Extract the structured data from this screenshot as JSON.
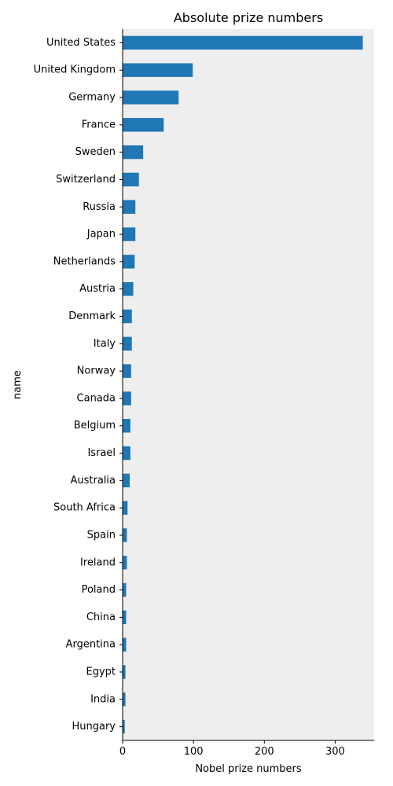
{
  "chart_data": {
    "type": "bar",
    "orientation": "horizontal",
    "title": "Absolute prize numbers",
    "xlabel": "Nobel prize numbers",
    "ylabel": "name",
    "categories": [
      "United States",
      "United Kingdom",
      "Germany",
      "France",
      "Sweden",
      "Switzerland",
      "Russia",
      "Japan",
      "Netherlands",
      "Austria",
      "Denmark",
      "Italy",
      "Norway",
      "Canada",
      "Belgium",
      "Israel",
      "Australia",
      "South Africa",
      "Spain",
      "Ireland",
      "Poland",
      "China",
      "Argentina",
      "Egypt",
      "India",
      "Hungary"
    ],
    "values": [
      339,
      99,
      79,
      58,
      29,
      23,
      18,
      18,
      17,
      15,
      13,
      13,
      12,
      12,
      11,
      11,
      10,
      7,
      6,
      6,
      5,
      5,
      5,
      4,
      4,
      3
    ],
    "xlim": [
      0,
      355
    ],
    "xticks": [
      0,
      100,
      200,
      300
    ],
    "grid": false,
    "bar_color": "#1f77b4",
    "plot_background": "#eeeeee"
  }
}
